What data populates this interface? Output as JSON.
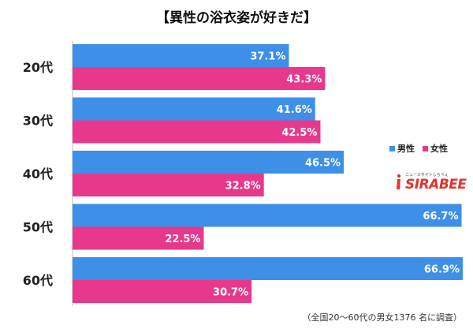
{
  "title": "【異性の浴衣姿が好きだ】",
  "footnote": "（全国20～60代の男女1376 名に調査）",
  "legend": [
    {
      "label": "男性",
      "color": "#3d8fe8"
    },
    {
      "label": "女性",
      "color": "#e8388c"
    }
  ],
  "logo": {
    "text": "SIRABEE",
    "tagline": "ニュースサイトしらべぇ"
  },
  "chart_data": {
    "type": "bar",
    "orientation": "horizontal",
    "categories": [
      "20代",
      "30代",
      "40代",
      "50代",
      "60代"
    ],
    "series": [
      {
        "name": "男性",
        "color": "#3d8fe8",
        "values": [
          37.1,
          41.6,
          46.5,
          66.7,
          66.9
        ],
        "labels": [
          "37.1%",
          "41.6%",
          "46.5%",
          "66.7%",
          "66.9%"
        ]
      },
      {
        "name": "女性",
        "color": "#e8388c",
        "values": [
          43.3,
          42.5,
          32.8,
          22.5,
          30.7
        ],
        "labels": [
          "43.3%",
          "42.5%",
          "32.8%",
          "22.5%",
          "30.7%"
        ]
      }
    ],
    "title": "【異性の浴衣姿が好きだ】",
    "xlabel": "",
    "ylabel": "",
    "xlim": [
      0,
      66.9
    ],
    "grid": false,
    "legend_position": "right"
  }
}
